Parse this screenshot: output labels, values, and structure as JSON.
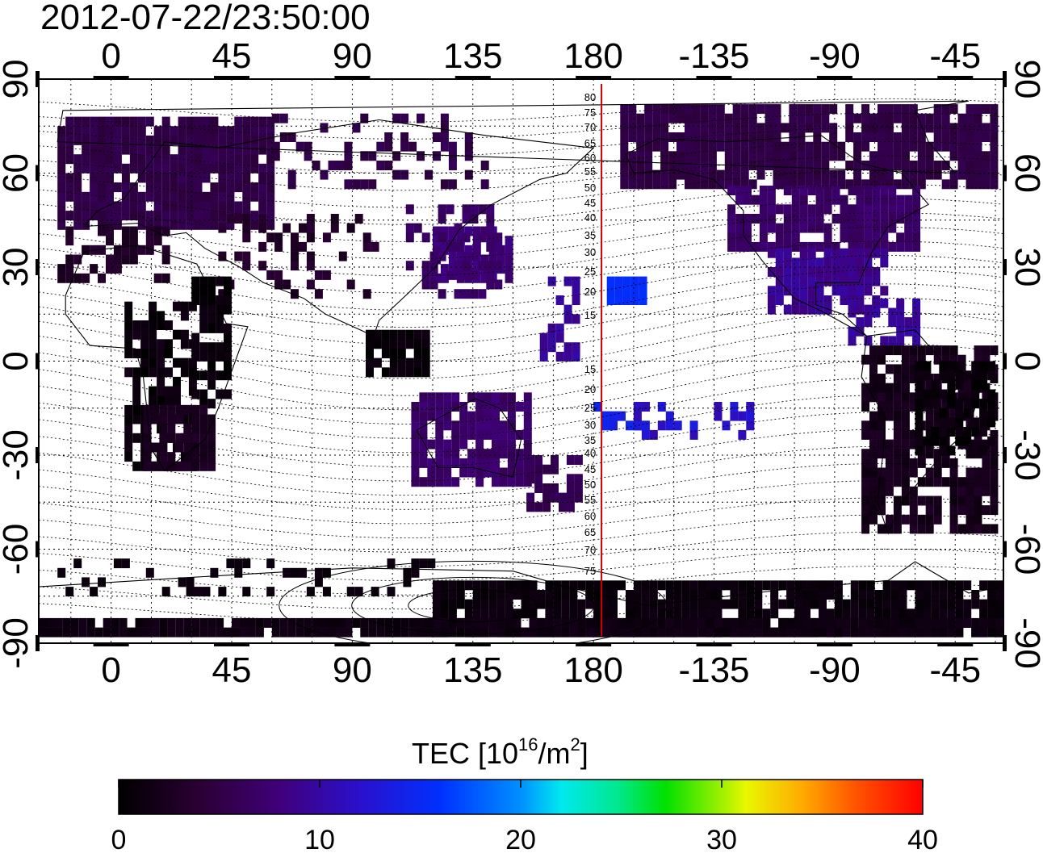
{
  "title": "2012-07-22/23:50:00",
  "top_ticks": [
    "0",
    "45",
    "90",
    "135",
    "180",
    "-135",
    "-90",
    "-45"
  ],
  "bottom_ticks": [
    "0",
    "45",
    "90",
    "135",
    "180",
    "-135",
    "-90",
    "-45"
  ],
  "left_ticks": [
    "90",
    "60",
    "30",
    "0",
    "-30",
    "-60",
    "-90"
  ],
  "right_ticks": [
    "90",
    "60",
    "30",
    "0",
    "-30",
    "-60",
    "-90"
  ],
  "mlat_labels": [
    "80",
    "75",
    "70",
    "65",
    "60",
    "55",
    "50",
    "45",
    "40",
    "35",
    "30",
    "25",
    "20",
    "15",
    "15",
    "20",
    "25",
    "30",
    "35",
    "40",
    "45",
    "50",
    "55",
    "60",
    "65",
    "70",
    "75"
  ],
  "meridian_line": {
    "longitude": 183,
    "color": "#cc0000"
  },
  "colorbar": {
    "title_main": "TEC  [10",
    "title_sup": "16",
    "title_mid": "/m",
    "title_sup2": "2",
    "title_end": "]",
    "tick_labels": [
      "0",
      "10",
      "20",
      "30",
      "40"
    ],
    "min": 0,
    "max": 40
  },
  "colors": {
    "land_outline": "#000000",
    "grid": "#000000",
    "meridian": "#cc0000"
  }
}
